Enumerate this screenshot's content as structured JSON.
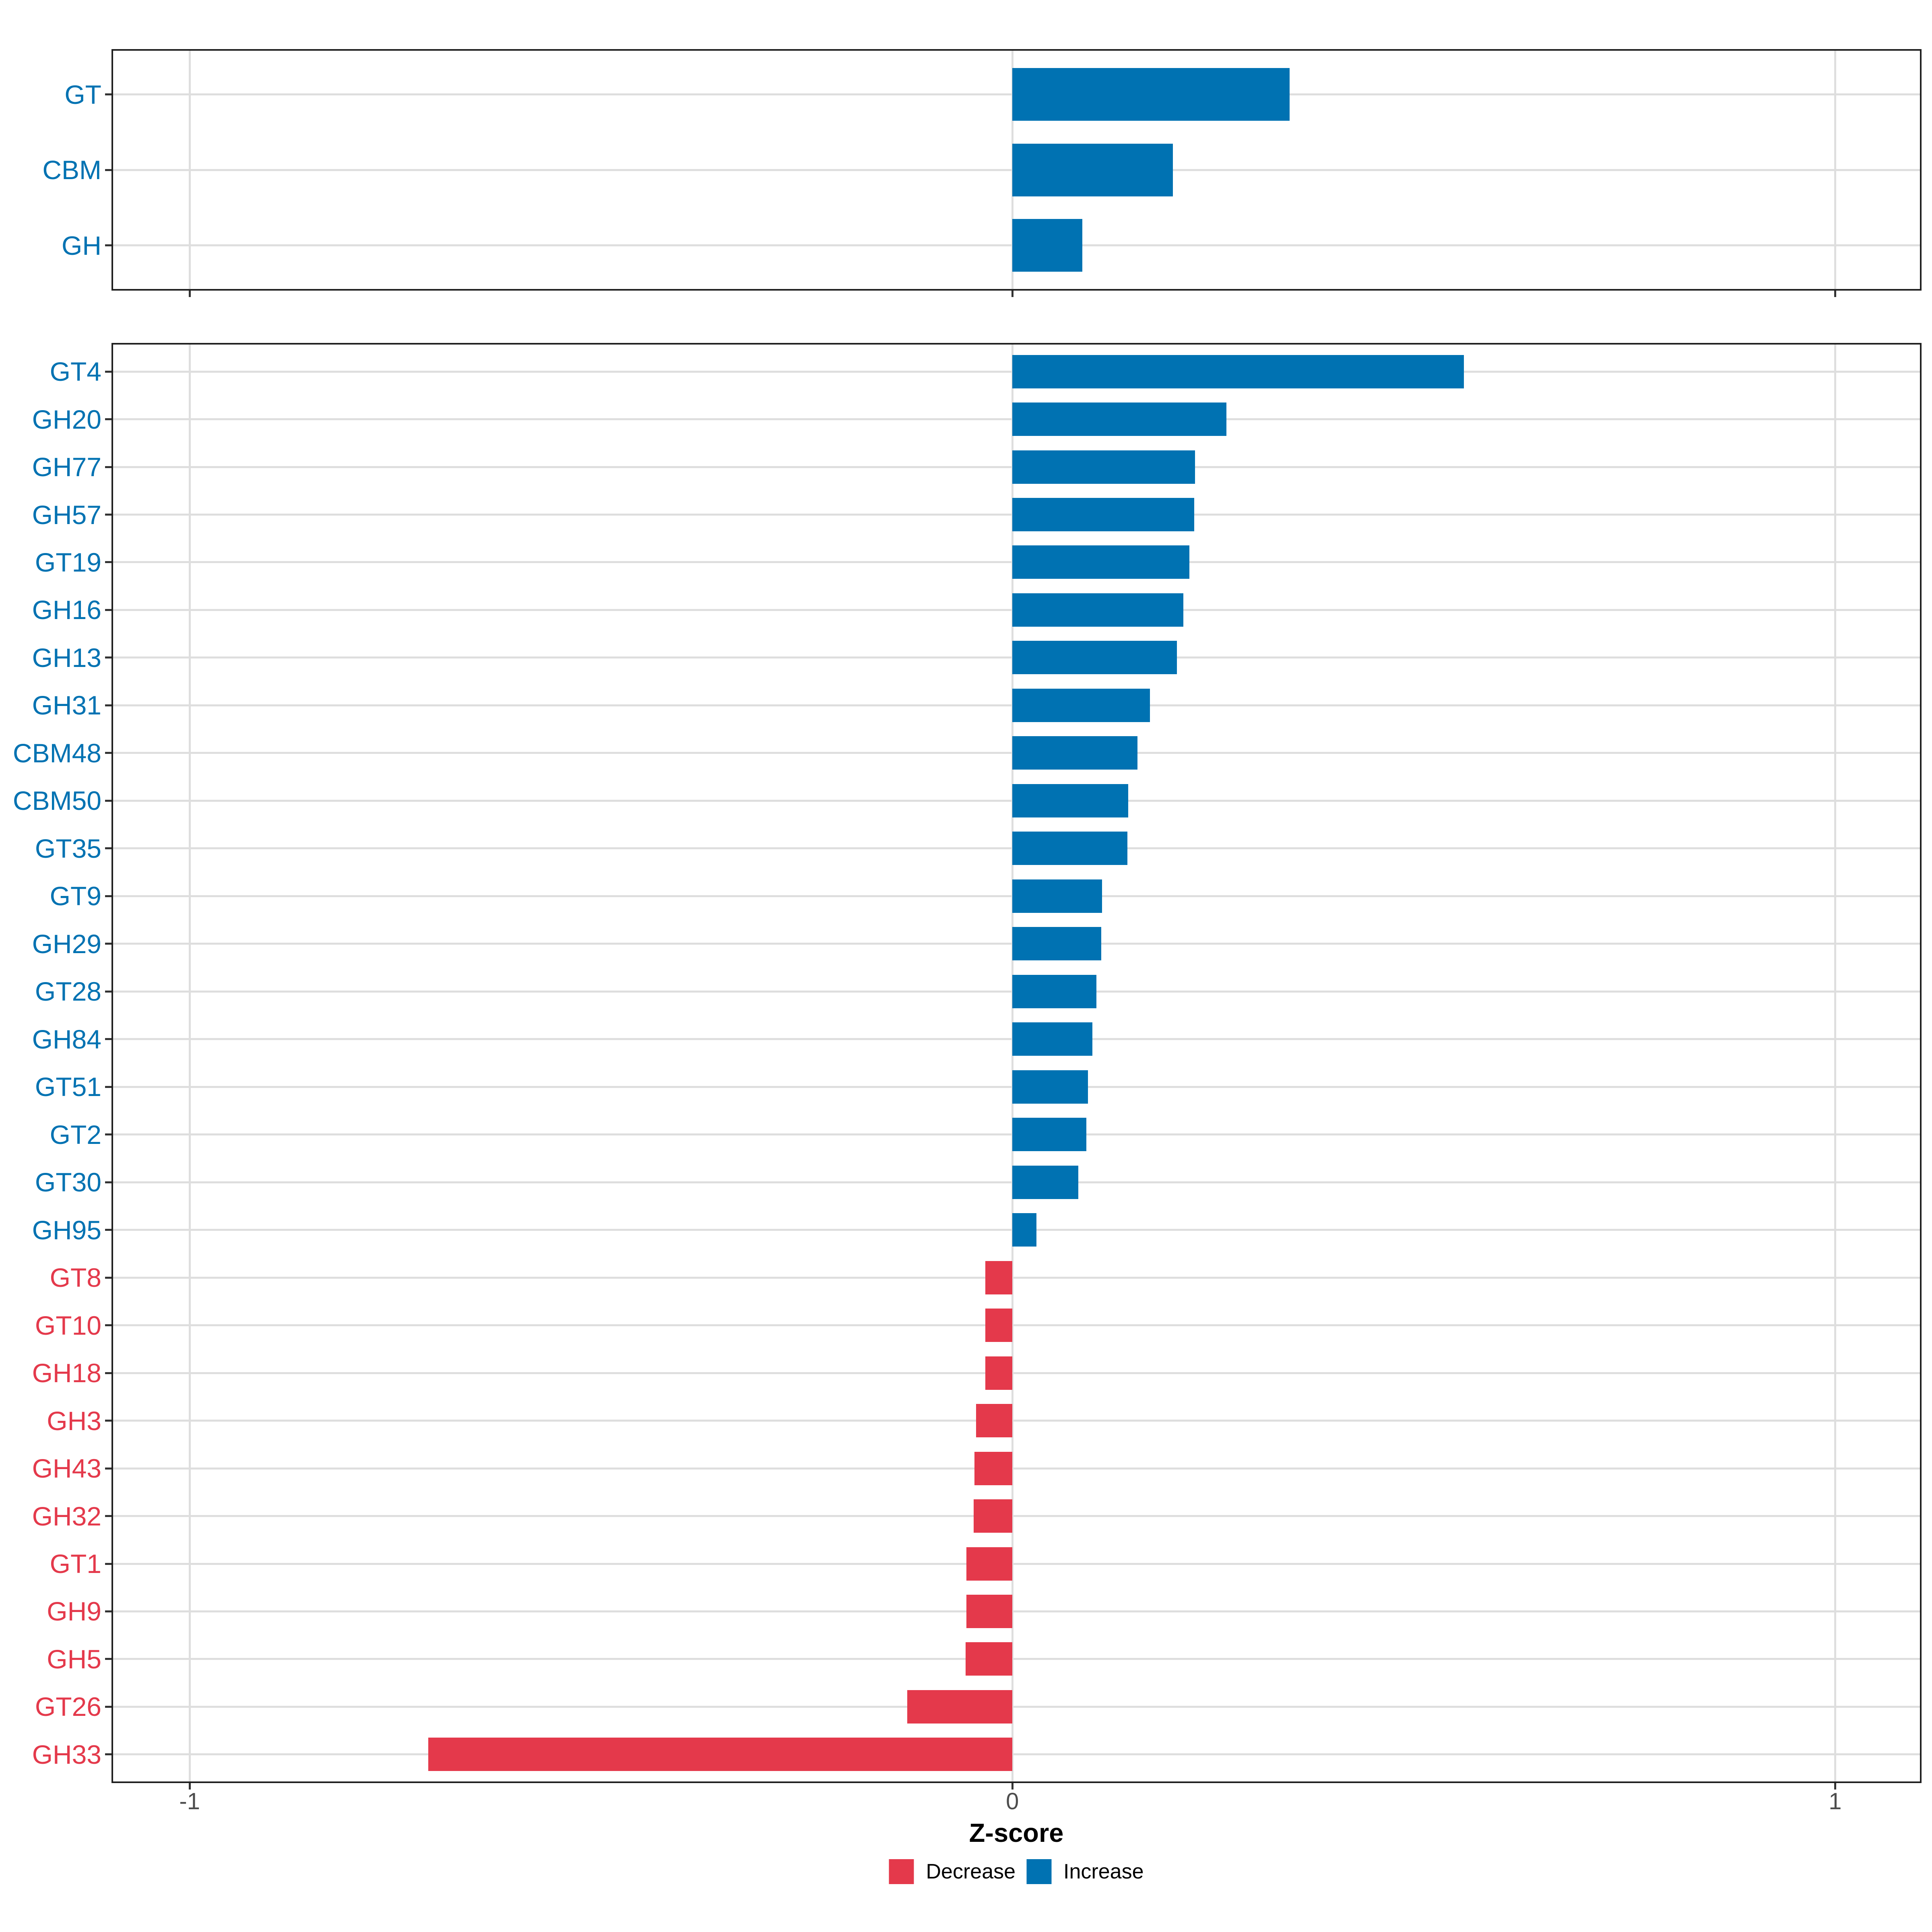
{
  "chart_data": {
    "type": "bar",
    "orientation": "horizontal",
    "title": "",
    "xlabel": "Z-score",
    "ylabel": "",
    "xlim": [
      -1.095,
      1.105
    ],
    "x_ticks": [
      -1,
      0,
      1
    ],
    "x_tick_labels": [
      "-1",
      "0",
      "1"
    ],
    "grid": "major-only",
    "legend_position": "bottom-center",
    "colors": {
      "increase": "#0072B2",
      "decrease": "#E4394B",
      "gridline": "#DEDEDE",
      "panel_border": "#1F1F1F",
      "tick_label": "#4D4D4D"
    },
    "legend": [
      {
        "label": "Decrease",
        "color": "#E4394B"
      },
      {
        "label": "Increase",
        "color": "#0072B2"
      }
    ],
    "panels": [
      {
        "name": "top",
        "categories": [
          "GT",
          "CBM",
          "GH"
        ],
        "values": [
          0.337,
          0.195,
          0.085
        ]
      },
      {
        "name": "bottom",
        "categories": [
          "GT4",
          "GH20",
          "GH77",
          "GH57",
          "GT19",
          "GH16",
          "GH13",
          "GH31",
          "CBM48",
          "CBM50",
          "GT35",
          "GT9",
          "GH29",
          "GT28",
          "GH84",
          "GT51",
          "GT2",
          "GT30",
          "GH95",
          "GT8",
          "GT10",
          "GH18",
          "GH3",
          "GH43",
          "GH32",
          "GT1",
          "GH9",
          "GH5",
          "GT26",
          "GH33"
        ],
        "values": [
          0.549,
          0.26,
          0.222,
          0.221,
          0.215,
          0.208,
          0.2,
          0.167,
          0.152,
          0.141,
          0.14,
          0.109,
          0.108,
          0.102,
          0.097,
          0.092,
          0.09,
          0.08,
          0.029,
          -0.033,
          -0.033,
          -0.033,
          -0.044,
          -0.046,
          -0.047,
          -0.056,
          -0.056,
          -0.057,
          -0.128,
          -0.71
        ]
      }
    ]
  }
}
